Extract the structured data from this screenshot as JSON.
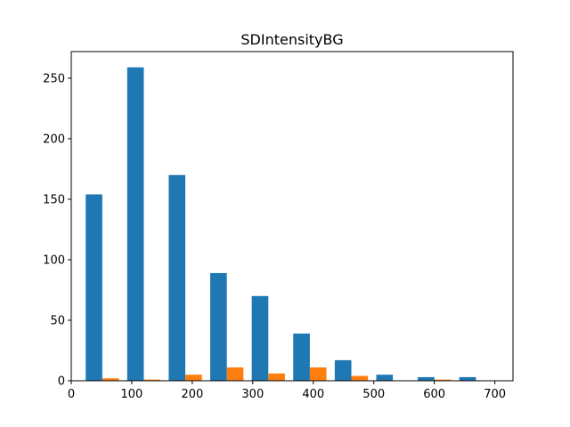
{
  "chart_data": {
    "type": "bar",
    "title": "SDIntensityBG",
    "xlabel": "",
    "ylabel": "",
    "xlim": [
      0,
      730
    ],
    "ylim": [
      0,
      272
    ],
    "xticks": [
      0,
      100,
      200,
      300,
      400,
      500,
      600,
      700
    ],
    "yticks": [
      0,
      50,
      100,
      150,
      200,
      250
    ],
    "grid": false,
    "bin_edges": [
      17,
      85.6,
      154.2,
      222.8,
      291.4,
      360,
      428.6,
      497.2,
      565.8,
      634.4,
      703
    ],
    "series": [
      {
        "color": "#1f77b4",
        "values": [
          154,
          259,
          170,
          89,
          70,
          39,
          17,
          5,
          3,
          3
        ]
      },
      {
        "color": "#ff7f0e",
        "values": [
          2,
          1,
          5,
          11,
          6,
          11,
          4,
          0,
          1,
          0
        ]
      }
    ]
  }
}
